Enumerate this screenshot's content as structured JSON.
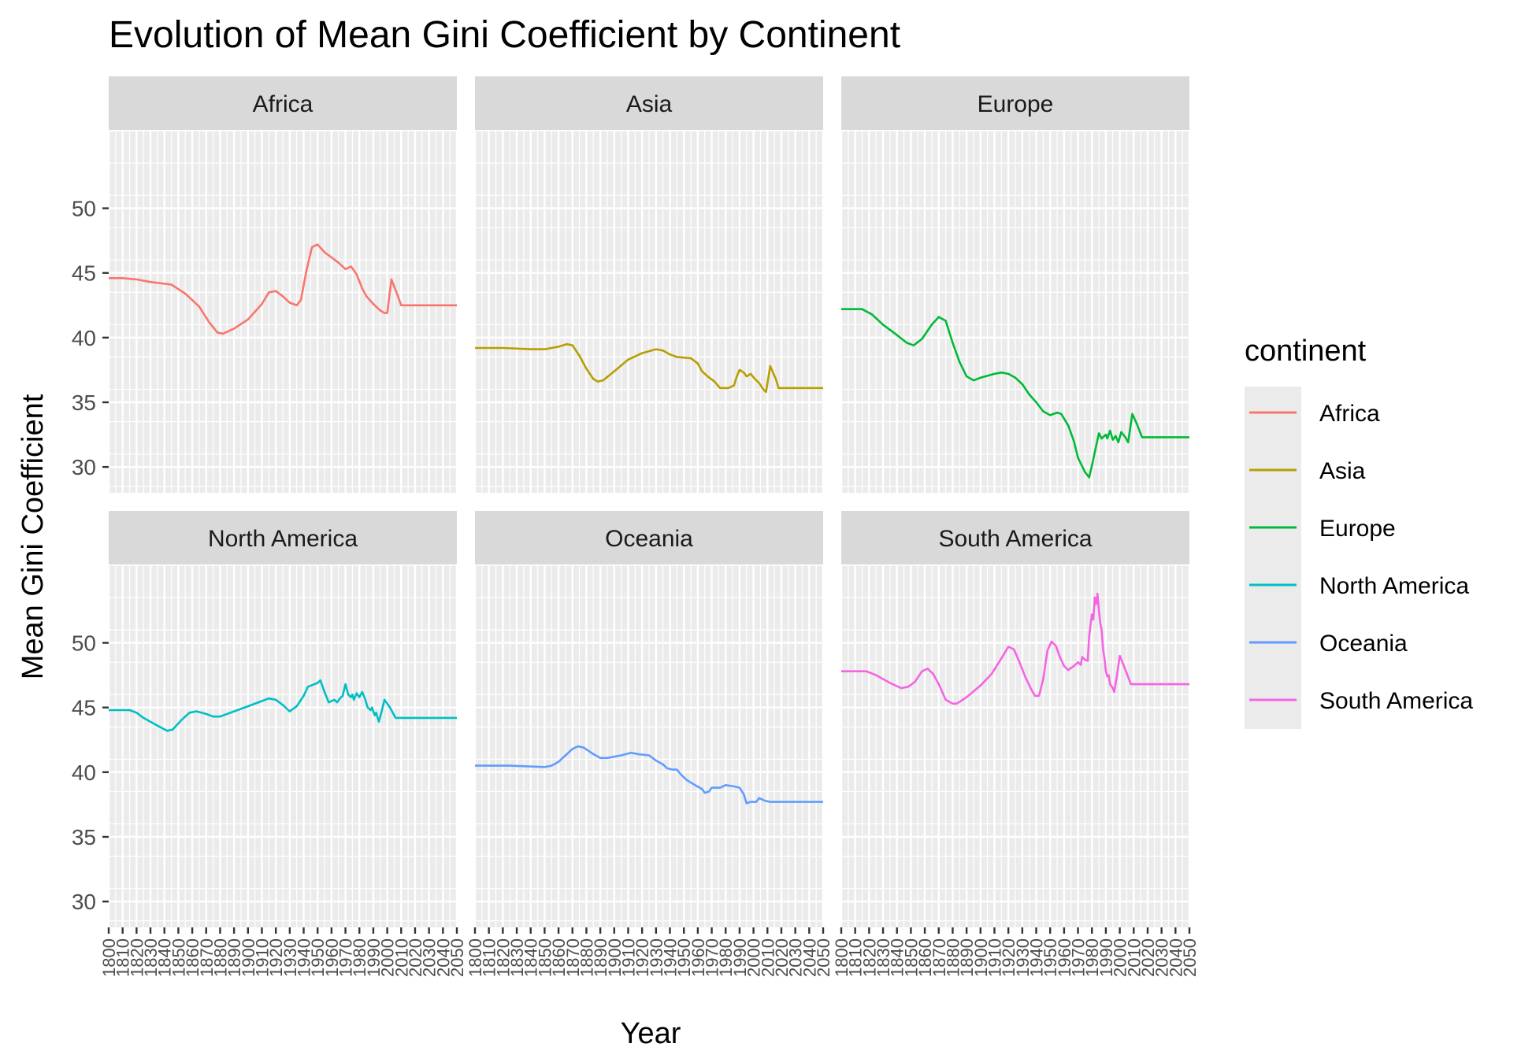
{
  "chart_data": {
    "type": "line",
    "title": "Evolution of Mean Gini Coefficient by Continent",
    "xlabel": "Year",
    "ylabel": "Mean Gini Coefficient",
    "xlim": [
      1800,
      2050
    ],
    "ylim": [
      28,
      56
    ],
    "yticks": [
      30,
      35,
      40,
      45,
      50
    ],
    "xticks": [
      1800,
      1810,
      1820,
      1830,
      1840,
      1850,
      1860,
      1870,
      1880,
      1890,
      1900,
      1910,
      1920,
      1930,
      1940,
      1950,
      1960,
      1970,
      1980,
      1990,
      2000,
      2010,
      2020,
      2030,
      2040,
      2050
    ],
    "grid": true,
    "facets": "wrap 3 columns",
    "legend": {
      "title": "continent",
      "position": "right"
    },
    "series": [
      {
        "name": "Africa",
        "color": "#F8766D",
        "points": [
          [
            1800,
            44.6
          ],
          [
            1810,
            44.6
          ],
          [
            1820,
            44.5
          ],
          [
            1830,
            44.3
          ],
          [
            1845,
            44.1
          ],
          [
            1855,
            43.4
          ],
          [
            1865,
            42.4
          ],
          [
            1872,
            41.2
          ],
          [
            1878,
            40.4
          ],
          [
            1882,
            40.3
          ],
          [
            1890,
            40.7
          ],
          [
            1900,
            41.4
          ],
          [
            1910,
            42.6
          ],
          [
            1915,
            43.5
          ],
          [
            1920,
            43.6
          ],
          [
            1925,
            43.2
          ],
          [
            1930,
            42.7
          ],
          [
            1935,
            42.5
          ],
          [
            1938,
            42.9
          ],
          [
            1942,
            45.2
          ],
          [
            1946,
            47.0
          ],
          [
            1950,
            47.2
          ],
          [
            1955,
            46.6
          ],
          [
            1960,
            46.2
          ],
          [
            1965,
            45.8
          ],
          [
            1970,
            45.3
          ],
          [
            1974,
            45.5
          ],
          [
            1978,
            44.9
          ],
          [
            1982,
            43.8
          ],
          [
            1985,
            43.2
          ],
          [
            1990,
            42.6
          ],
          [
            1995,
            42.1
          ],
          [
            1998,
            41.9
          ],
          [
            2000,
            41.9
          ],
          [
            2003,
            44.5
          ],
          [
            2007,
            43.4
          ],
          [
            2010,
            42.5
          ],
          [
            2020,
            42.5
          ],
          [
            2050,
            42.5
          ]
        ]
      },
      {
        "name": "Asia",
        "color": "#B79F00",
        "points": [
          [
            1800,
            39.2
          ],
          [
            1820,
            39.2
          ],
          [
            1840,
            39.1
          ],
          [
            1850,
            39.1
          ],
          [
            1860,
            39.3
          ],
          [
            1866,
            39.5
          ],
          [
            1870,
            39.4
          ],
          [
            1875,
            38.6
          ],
          [
            1880,
            37.6
          ],
          [
            1885,
            36.8
          ],
          [
            1888,
            36.6
          ],
          [
            1892,
            36.7
          ],
          [
            1900,
            37.4
          ],
          [
            1910,
            38.3
          ],
          [
            1920,
            38.8
          ],
          [
            1930,
            39.1
          ],
          [
            1935,
            39.0
          ],
          [
            1940,
            38.7
          ],
          [
            1945,
            38.5
          ],
          [
            1955,
            38.4
          ],
          [
            1960,
            38.0
          ],
          [
            1963,
            37.4
          ],
          [
            1967,
            37.0
          ],
          [
            1972,
            36.6
          ],
          [
            1976,
            36.1
          ],
          [
            1982,
            36.1
          ],
          [
            1986,
            36.3
          ],
          [
            1988,
            37.0
          ],
          [
            1990,
            37.5
          ],
          [
            1993,
            37.3
          ],
          [
            1995,
            37.0
          ],
          [
            1998,
            37.2
          ],
          [
            2001,
            36.8
          ],
          [
            2004,
            36.5
          ],
          [
            2007,
            36.0
          ],
          [
            2009,
            35.8
          ],
          [
            2012,
            37.8
          ],
          [
            2016,
            36.8
          ],
          [
            2018,
            36.1
          ],
          [
            2050,
            36.1
          ]
        ]
      },
      {
        "name": "Europe",
        "color": "#00BA38",
        "points": [
          [
            1800,
            42.2
          ],
          [
            1815,
            42.2
          ],
          [
            1822,
            41.8
          ],
          [
            1830,
            41.0
          ],
          [
            1840,
            40.2
          ],
          [
            1847,
            39.6
          ],
          [
            1852,
            39.4
          ],
          [
            1858,
            39.9
          ],
          [
            1865,
            41.0
          ],
          [
            1870,
            41.6
          ],
          [
            1875,
            41.3
          ],
          [
            1880,
            39.6
          ],
          [
            1885,
            38.1
          ],
          [
            1890,
            37.0
          ],
          [
            1895,
            36.7
          ],
          [
            1900,
            36.9
          ],
          [
            1910,
            37.2
          ],
          [
            1915,
            37.3
          ],
          [
            1920,
            37.2
          ],
          [
            1925,
            36.9
          ],
          [
            1930,
            36.4
          ],
          [
            1935,
            35.6
          ],
          [
            1940,
            35.0
          ],
          [
            1945,
            34.3
          ],
          [
            1950,
            34.0
          ],
          [
            1955,
            34.2
          ],
          [
            1958,
            34.1
          ],
          [
            1963,
            33.2
          ],
          [
            1967,
            32.0
          ],
          [
            1970,
            30.7
          ],
          [
            1975,
            29.6
          ],
          [
            1978,
            29.2
          ],
          [
            1980,
            30.1
          ],
          [
            1983,
            31.6
          ],
          [
            1985,
            32.6
          ],
          [
            1987,
            32.2
          ],
          [
            1990,
            32.5
          ],
          [
            1991,
            32.2
          ],
          [
            1993,
            32.8
          ],
          [
            1995,
            32.1
          ],
          [
            1997,
            32.4
          ],
          [
            1999,
            31.9
          ],
          [
            2001,
            32.7
          ],
          [
            2004,
            32.3
          ],
          [
            2006,
            31.9
          ],
          [
            2009,
            34.1
          ],
          [
            2012,
            33.4
          ],
          [
            2016,
            32.3
          ],
          [
            2050,
            32.3
          ]
        ]
      },
      {
        "name": "North America",
        "color": "#00BFC4",
        "points": [
          [
            1800,
            44.8
          ],
          [
            1815,
            44.8
          ],
          [
            1820,
            44.6
          ],
          [
            1825,
            44.2
          ],
          [
            1835,
            43.6
          ],
          [
            1842,
            43.2
          ],
          [
            1846,
            43.3
          ],
          [
            1852,
            44.0
          ],
          [
            1858,
            44.6
          ],
          [
            1863,
            44.7
          ],
          [
            1870,
            44.5
          ],
          [
            1875,
            44.3
          ],
          [
            1880,
            44.3
          ],
          [
            1890,
            44.7
          ],
          [
            1900,
            45.1
          ],
          [
            1910,
            45.5
          ],
          [
            1915,
            45.7
          ],
          [
            1920,
            45.6
          ],
          [
            1925,
            45.2
          ],
          [
            1930,
            44.7
          ],
          [
            1935,
            45.1
          ],
          [
            1940,
            45.9
          ],
          [
            1943,
            46.6
          ],
          [
            1950,
            46.9
          ],
          [
            1952,
            47.1
          ],
          [
            1955,
            46.2
          ],
          [
            1958,
            45.4
          ],
          [
            1962,
            45.6
          ],
          [
            1964,
            45.4
          ],
          [
            1966,
            45.7
          ],
          [
            1968,
            45.9
          ],
          [
            1970,
            46.8
          ],
          [
            1972,
            46.0
          ],
          [
            1974,
            45.8
          ],
          [
            1975,
            46.0
          ],
          [
            1976,
            45.6
          ],
          [
            1978,
            46.1
          ],
          [
            1980,
            45.8
          ],
          [
            1982,
            46.2
          ],
          [
            1984,
            45.7
          ],
          [
            1986,
            45.0
          ],
          [
            1988,
            44.8
          ],
          [
            1989,
            45.0
          ],
          [
            1991,
            44.4
          ],
          [
            1992,
            44.6
          ],
          [
            1994,
            43.9
          ],
          [
            1996,
            44.7
          ],
          [
            1998,
            45.6
          ],
          [
            2002,
            45.0
          ],
          [
            2006,
            44.2
          ],
          [
            2050,
            44.2
          ]
        ]
      },
      {
        "name": "Oceania",
        "color": "#619CFF",
        "points": [
          [
            1800,
            40.5
          ],
          [
            1825,
            40.5
          ],
          [
            1850,
            40.4
          ],
          [
            1855,
            40.5
          ],
          [
            1860,
            40.8
          ],
          [
            1865,
            41.3
          ],
          [
            1870,
            41.8
          ],
          [
            1874,
            42.0
          ],
          [
            1878,
            41.9
          ],
          [
            1885,
            41.4
          ],
          [
            1890,
            41.1
          ],
          [
            1895,
            41.1
          ],
          [
            1905,
            41.3
          ],
          [
            1912,
            41.5
          ],
          [
            1917,
            41.4
          ],
          [
            1925,
            41.3
          ],
          [
            1930,
            40.9
          ],
          [
            1935,
            40.6
          ],
          [
            1938,
            40.3
          ],
          [
            1942,
            40.2
          ],
          [
            1945,
            40.2
          ],
          [
            1948,
            39.8
          ],
          [
            1952,
            39.4
          ],
          [
            1958,
            39.0
          ],
          [
            1963,
            38.7
          ],
          [
            1965,
            38.4
          ],
          [
            1968,
            38.5
          ],
          [
            1970,
            38.8
          ],
          [
            1976,
            38.8
          ],
          [
            1980,
            39.0
          ],
          [
            1986,
            38.9
          ],
          [
            1990,
            38.8
          ],
          [
            1993,
            38.3
          ],
          [
            1995,
            37.6
          ],
          [
            1998,
            37.7
          ],
          [
            2002,
            37.7
          ],
          [
            2004,
            38.0
          ],
          [
            2008,
            37.8
          ],
          [
            2012,
            37.7
          ],
          [
            2050,
            37.7
          ]
        ]
      },
      {
        "name": "South America",
        "color": "#F564E3",
        "points": [
          [
            1800,
            47.8
          ],
          [
            1818,
            47.8
          ],
          [
            1825,
            47.5
          ],
          [
            1835,
            46.9
          ],
          [
            1843,
            46.5
          ],
          [
            1848,
            46.6
          ],
          [
            1853,
            47.0
          ],
          [
            1858,
            47.8
          ],
          [
            1862,
            48.0
          ],
          [
            1866,
            47.6
          ],
          [
            1870,
            46.8
          ],
          [
            1875,
            45.6
          ],
          [
            1880,
            45.3
          ],
          [
            1883,
            45.3
          ],
          [
            1890,
            45.8
          ],
          [
            1900,
            46.7
          ],
          [
            1908,
            47.6
          ],
          [
            1915,
            48.8
          ],
          [
            1920,
            49.7
          ],
          [
            1924,
            49.5
          ],
          [
            1928,
            48.5
          ],
          [
            1932,
            47.4
          ],
          [
            1936,
            46.5
          ],
          [
            1939,
            45.9
          ],
          [
            1942,
            45.9
          ],
          [
            1945,
            47.2
          ],
          [
            1948,
            49.4
          ],
          [
            1951,
            50.1
          ],
          [
            1954,
            49.8
          ],
          [
            1957,
            48.9
          ],
          [
            1960,
            48.2
          ],
          [
            1963,
            47.9
          ],
          [
            1967,
            48.2
          ],
          [
            1970,
            48.5
          ],
          [
            1972,
            48.3
          ],
          [
            1973,
            48.9
          ],
          [
            1975,
            48.7
          ],
          [
            1977,
            48.6
          ],
          [
            1978,
            50.5
          ],
          [
            1980,
            52.2
          ],
          [
            1981,
            51.8
          ],
          [
            1982,
            53.5
          ],
          [
            1983,
            53.0
          ],
          [
            1984,
            53.8
          ],
          [
            1985,
            52.5
          ],
          [
            1986,
            51.5
          ],
          [
            1987,
            51.0
          ],
          [
            1988,
            49.5
          ],
          [
            1989,
            48.8
          ],
          [
            1990,
            47.8
          ],
          [
            1991,
            47.4
          ],
          [
            1992,
            47.5
          ],
          [
            1993,
            46.8
          ],
          [
            1995,
            46.5
          ],
          [
            1996,
            46.2
          ],
          [
            1998,
            47.5
          ],
          [
            2000,
            49.0
          ],
          [
            2003,
            48.2
          ],
          [
            2008,
            46.8
          ],
          [
            2050,
            46.8
          ]
        ]
      }
    ]
  }
}
